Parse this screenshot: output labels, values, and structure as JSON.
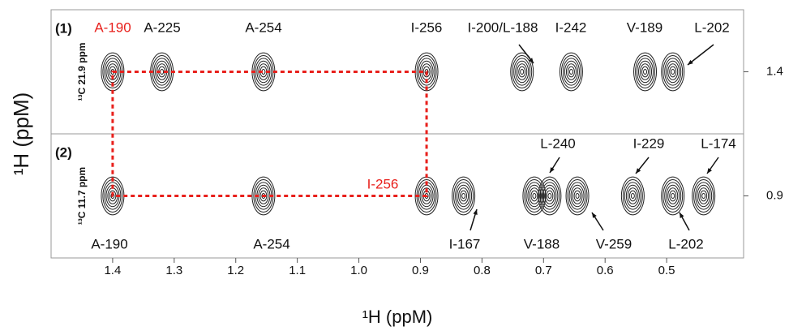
{
  "y_label": "¹H (ppM)",
  "chart_data": [
    {
      "type": "contour",
      "panel_label": "(1)",
      "y_label": "¹³C 21.9 ppm",
      "xlim": [
        1.5,
        0.375
      ],
      "ylim": [
        1.2,
        1.6
      ],
      "yticks": [
        1.4
      ],
      "labels": [
        "A-190",
        "A-225",
        "A-254",
        "I-256",
        "I-200/L-188",
        "I-242",
        "V-189",
        "L-202"
      ],
      "x": [
        1.4,
        1.32,
        1.155,
        0.89,
        0.735,
        0.655,
        0.535,
        0.49
      ],
      "values": [
        1.4,
        1.4,
        1.4,
        1.4,
        1.4,
        1.4,
        1.4,
        1.4
      ],
      "label_colors": [
        "#e8201c",
        "#111111",
        "#111111",
        "#111111",
        "#111111",
        "#111111",
        "#111111",
        "#111111"
      ],
      "contour_color": "#222222"
    },
    {
      "type": "contour",
      "panel_label": "(2)",
      "y_label": "¹³C 11.7 ppm",
      "xlim": [
        1.5,
        0.375
      ],
      "ylim": [
        0.7,
        1.1
      ],
      "yticks": [
        0.9
      ],
      "xticks": [
        1.4,
        1.3,
        1.2,
        1.1,
        {
          "value": 1,
          "label": "1.0"
        },
        0.9,
        0.8,
        0.7,
        0.6,
        0.5
      ],
      "x_label": "¹H (ppM)",
      "labels": [
        "A-190",
        "A-254",
        "I-256",
        "I-167",
        "L-240",
        "V-188",
        "V-259",
        "I-229",
        "L-202",
        "L-174"
      ],
      "x": [
        1.4,
        1.155,
        0.89,
        0.83,
        0.69,
        0.715,
        0.645,
        0.555,
        0.49,
        0.44
      ],
      "values": [
        0.9,
        0.9,
        0.9,
        0.9,
        0.9,
        0.9,
        0.9,
        0.9,
        0.9,
        0.9
      ],
      "label_colors": [
        "#111111",
        "#111111",
        "#e8201c",
        "#111111",
        "#111111",
        "#111111",
        "#111111",
        "#111111",
        "#111111",
        "#111111"
      ],
      "contour_color": "#222222"
    }
  ]
}
